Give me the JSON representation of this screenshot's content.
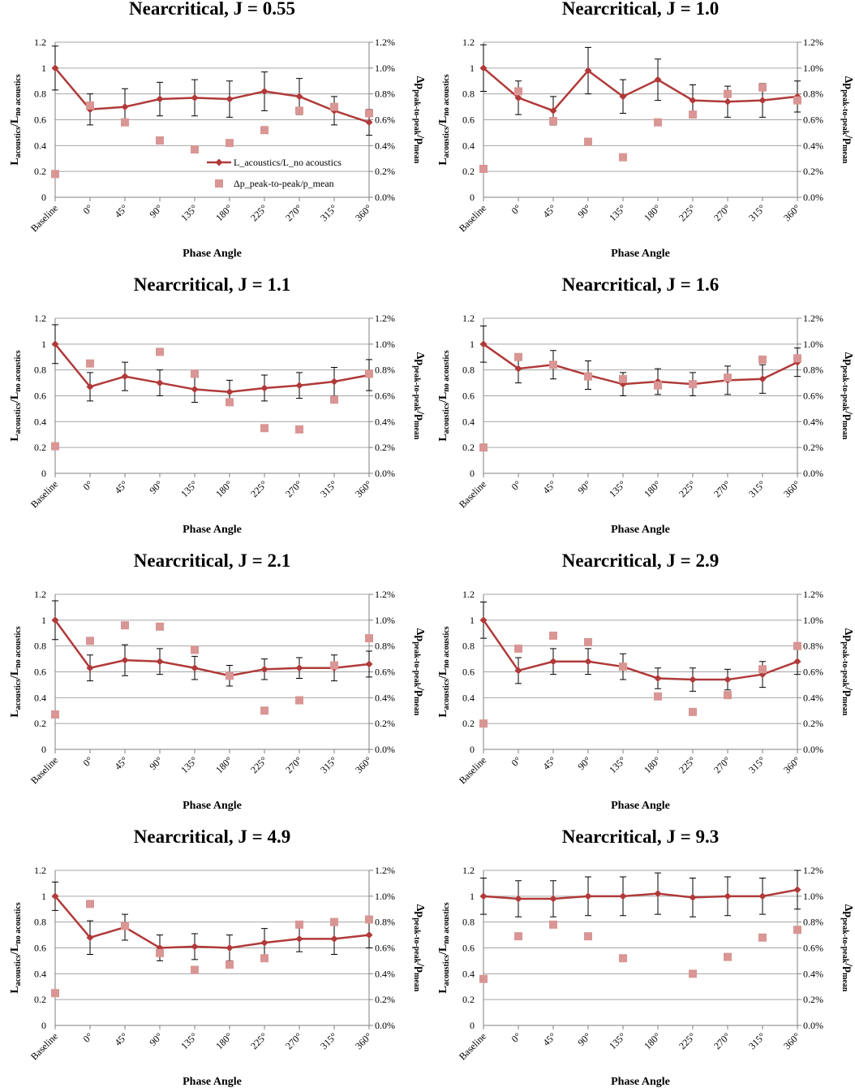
{
  "chart_data": [
    {
      "type": "line",
      "title": "Nearcritical, J = 0.55",
      "x_label": "Phase Angle",
      "y_label": [
        "L",
        "acoustics",
        "/L",
        "no acoustics"
      ],
      "y2_label": [
        "Δp",
        "peak-to-peak",
        "/p",
        "mean"
      ],
      "categories": [
        "Baseline",
        "0°",
        "45°",
        "90°",
        "135°",
        "180°",
        "225°",
        "270°",
        "315°",
        "360°"
      ],
      "ylim": [
        0,
        1.2
      ],
      "yticks": [
        0,
        0.2,
        0.4,
        0.6,
        0.8,
        1,
        1.2
      ],
      "y2lim": [
        0,
        1.2
      ],
      "y2ticks": [
        {
          "value": 0,
          "label": "0.0%"
        },
        {
          "value": 0.2,
          "label": "0.2%"
        },
        {
          "value": 0.4,
          "label": "0.4%"
        },
        {
          "value": 0.6,
          "label": "0.6%"
        },
        {
          "value": 0.8,
          "label": "0.8%"
        },
        {
          "value": 1.0,
          "label": "1.0%"
        },
        {
          "value": 1.2,
          "label": "1.2%"
        }
      ],
      "grid": true,
      "legend": "lower right",
      "series": [
        {
          "name": "L_acoustics/L_no acoustics",
          "color": "#b03a3a",
          "values": [
            1.0,
            0.68,
            0.7,
            0.76,
            0.77,
            0.76,
            0.82,
            0.78,
            0.67,
            0.58
          ],
          "errors": [
            0.17,
            0.12,
            0.14,
            0.13,
            0.14,
            0.14,
            0.15,
            0.14,
            0.11,
            0.1
          ]
        },
        {
          "name": "Δp_peak-to-peak/p_mean",
          "color": "#d99694",
          "axis": "y2",
          "values": [
            0.18,
            0.71,
            0.58,
            0.44,
            0.37,
            0.42,
            0.52,
            0.67,
            0.7,
            0.65
          ]
        }
      ]
    },
    {
      "type": "line",
      "title": "Nearcritical, J = 1.0",
      "x_label": "Phase Angle",
      "y_label": [
        "L",
        "acoustics",
        "/L",
        "no acoustics"
      ],
      "y2_label": [
        "Δp",
        "peak-to-peak",
        "/p",
        "mean"
      ],
      "categories": [
        "Baseline",
        "0°",
        "45°",
        "90°",
        "135°",
        "180°",
        "225°",
        "270°",
        "315°",
        "360°"
      ],
      "ylim": [
        0,
        1.2
      ],
      "yticks": [
        0,
        0.2,
        0.4,
        0.6,
        0.8,
        1,
        1.2
      ],
      "y2lim": [
        0,
        1.2
      ],
      "y2ticks": [
        {
          "value": 0,
          "label": "0.0%"
        },
        {
          "value": 0.2,
          "label": "0.2%"
        },
        {
          "value": 0.4,
          "label": "0.4%"
        },
        {
          "value": 0.6,
          "label": "0.6%"
        },
        {
          "value": 0.8,
          "label": "0.8%"
        },
        {
          "value": 1.0,
          "label": "1.0%"
        },
        {
          "value": 1.2,
          "label": "1.2%"
        }
      ],
      "grid": true,
      "series": [
        {
          "color": "#b03a3a",
          "values": [
            1.0,
            0.77,
            0.67,
            0.98,
            0.78,
            0.91,
            0.75,
            0.74,
            0.75,
            0.78
          ],
          "errors": [
            0.18,
            0.13,
            0.11,
            0.18,
            0.13,
            0.16,
            0.12,
            0.12,
            0.13,
            0.12
          ]
        },
        {
          "color": "#d99694",
          "axis": "y2",
          "values": [
            0.22,
            0.82,
            0.59,
            0.43,
            0.31,
            0.58,
            0.64,
            0.8,
            0.85,
            0.75
          ]
        }
      ]
    },
    {
      "type": "line",
      "title": "Nearcritical, J = 1.1",
      "x_label": "Phase Angle",
      "y_label": [
        "L",
        "acoustics",
        "/L",
        "no acoustics"
      ],
      "y2_label": [
        "Δp",
        "peak-to-peak",
        "/p",
        "mean"
      ],
      "categories": [
        "Baseline",
        "0°",
        "45°",
        "90°",
        "135°",
        "180°",
        "225°",
        "270°",
        "315°",
        "360°"
      ],
      "ylim": [
        0,
        1.2
      ],
      "yticks": [
        0,
        0.2,
        0.4,
        0.6,
        0.8,
        1,
        1.2
      ],
      "y2lim": [
        0,
        1.2
      ],
      "y2ticks": [
        {
          "value": 0,
          "label": "0.0%"
        },
        {
          "value": 0.2,
          "label": "0.2%"
        },
        {
          "value": 0.4,
          "label": "0.4%"
        },
        {
          "value": 0.6,
          "label": "0.6%"
        },
        {
          "value": 0.8,
          "label": "0.8%"
        },
        {
          "value": 1.0,
          "label": "1.0%"
        },
        {
          "value": 1.2,
          "label": "1.2%"
        }
      ],
      "grid": true,
      "series": [
        {
          "color": "#b03a3a",
          "values": [
            1.0,
            0.67,
            0.75,
            0.7,
            0.65,
            0.63,
            0.66,
            0.68,
            0.71,
            0.76
          ],
          "errors": [
            0.15,
            0.11,
            0.11,
            0.1,
            0.1,
            0.09,
            0.1,
            0.1,
            0.11,
            0.12
          ]
        },
        {
          "color": "#d99694",
          "axis": "y2",
          "values": [
            0.21,
            0.85,
            null,
            0.94,
            0.77,
            0.55,
            0.35,
            0.34,
            0.57,
            0.77
          ]
        }
      ]
    },
    {
      "type": "line",
      "title": "Nearcritical, J = 1.6",
      "x_label": "Phase Angle",
      "y_label": [
        "L",
        "acoustics",
        "/L",
        "no acoustics"
      ],
      "y2_label": [
        "Δp",
        "peak-to-peak",
        "/p",
        "mean"
      ],
      "categories": [
        "Baseline",
        "0°",
        "45°",
        "90°",
        "135°",
        "180°",
        "225°",
        "270°",
        "315°",
        "360°"
      ],
      "ylim": [
        0,
        1.2
      ],
      "yticks": [
        0,
        0.2,
        0.4,
        0.6,
        0.8,
        1,
        1.2
      ],
      "y2lim": [
        0,
        1.2
      ],
      "y2ticks": [
        {
          "value": 0,
          "label": "0.0%"
        },
        {
          "value": 0.2,
          "label": "0.2%"
        },
        {
          "value": 0.4,
          "label": "0.4%"
        },
        {
          "value": 0.6,
          "label": "0.6%"
        },
        {
          "value": 0.8,
          "label": "0.8%"
        },
        {
          "value": 1.0,
          "label": "1.0%"
        },
        {
          "value": 1.2,
          "label": "1.2%"
        }
      ],
      "grid": true,
      "series": [
        {
          "color": "#b03a3a",
          "values": [
            1.0,
            0.81,
            0.84,
            0.76,
            0.69,
            0.71,
            0.69,
            0.72,
            0.73,
            0.86
          ],
          "errors": [
            0.14,
            0.11,
            0.11,
            0.11,
            0.09,
            0.1,
            0.09,
            0.11,
            0.11,
            0.11
          ]
        },
        {
          "color": "#d99694",
          "axis": "y2",
          "values": [
            0.2,
            0.9,
            0.84,
            0.75,
            0.73,
            0.68,
            0.69,
            0.74,
            0.88,
            0.89
          ]
        }
      ]
    },
    {
      "type": "line",
      "title": "Nearcritical, J = 2.1",
      "x_label": "Phase Angle",
      "y_label": [
        "L",
        "acoustics",
        "/L",
        "no acoustics"
      ],
      "y2_label": [
        "Δp",
        "peak-to-peak",
        "/p",
        "mean"
      ],
      "categories": [
        "Baseline",
        "0°",
        "45°",
        "90°",
        "135°",
        "180°",
        "225°",
        "270°",
        "315°",
        "360°"
      ],
      "ylim": [
        0,
        1.2
      ],
      "yticks": [
        0,
        0.2,
        0.4,
        0.6,
        0.8,
        1,
        1.2
      ],
      "y2lim": [
        0,
        1.2
      ],
      "y2ticks": [
        {
          "value": 0,
          "label": "0.0%"
        },
        {
          "value": 0.2,
          "label": "0.2%"
        },
        {
          "value": 0.4,
          "label": "0.4%"
        },
        {
          "value": 0.6,
          "label": "0.6%"
        },
        {
          "value": 0.8,
          "label": "0.8%"
        },
        {
          "value": 1.0,
          "label": "1.0%"
        },
        {
          "value": 1.2,
          "label": "1.2%"
        }
      ],
      "grid": true,
      "series": [
        {
          "color": "#b03a3a",
          "values": [
            1.0,
            0.63,
            0.69,
            0.68,
            0.63,
            0.57,
            0.62,
            0.63,
            0.63,
            0.66
          ],
          "errors": [
            0.15,
            0.1,
            0.12,
            0.1,
            0.09,
            0.08,
            0.08,
            0.08,
            0.1,
            0.1
          ]
        },
        {
          "color": "#d99694",
          "axis": "y2",
          "values": [
            0.27,
            0.84,
            0.96,
            0.95,
            0.77,
            0.57,
            0.3,
            0.38,
            0.65,
            0.86
          ]
        }
      ]
    },
    {
      "type": "line",
      "title": "Nearcritical, J = 2.9",
      "x_label": "Phase Angle",
      "y_label": [
        "L",
        "acoustics",
        "/L",
        "no acoustics"
      ],
      "y2_label": [
        "Δp",
        "peak-to-peak",
        "/p",
        "mean"
      ],
      "categories": [
        "Baseline",
        "0°",
        "45°",
        "90°",
        "135°",
        "180°",
        "225°",
        "270°",
        "315°",
        "360°"
      ],
      "ylim": [
        0,
        1.2
      ],
      "yticks": [
        0,
        0.2,
        0.4,
        0.6,
        0.8,
        1,
        1.2
      ],
      "y2lim": [
        0,
        1.2
      ],
      "y2ticks": [
        {
          "value": 0,
          "label": "0.0%"
        },
        {
          "value": 0.2,
          "label": "0.2%"
        },
        {
          "value": 0.4,
          "label": "0.4%"
        },
        {
          "value": 0.6,
          "label": "0.6%"
        },
        {
          "value": 0.8,
          "label": "0.8%"
        },
        {
          "value": 1.0,
          "label": "1.0%"
        },
        {
          "value": 1.2,
          "label": "1.2%"
        }
      ],
      "grid": true,
      "series": [
        {
          "color": "#b03a3a",
          "values": [
            1.0,
            0.61,
            0.68,
            0.68,
            0.64,
            0.55,
            0.54,
            0.54,
            0.58,
            0.68
          ],
          "errors": [
            0.14,
            0.1,
            0.1,
            0.1,
            0.1,
            0.08,
            0.09,
            0.08,
            0.1,
            0.1
          ]
        },
        {
          "color": "#d99694",
          "axis": "y2",
          "values": [
            0.2,
            0.78,
            0.88,
            0.83,
            0.64,
            0.41,
            0.29,
            0.42,
            0.62,
            0.8
          ]
        }
      ]
    },
    {
      "type": "line",
      "title": "Nearcritical, J = 4.9",
      "x_label": "Phase Angle",
      "y_label": [
        "L",
        "acoustics",
        "/L",
        "no acoustics"
      ],
      "y2_label": [
        "Δp",
        "peak-to-peak",
        "/p",
        "mean"
      ],
      "categories": [
        "Baseline",
        "0°",
        "45°",
        "90°",
        "135°",
        "180°",
        "225°",
        "270°",
        "315°",
        "360°"
      ],
      "ylim": [
        0,
        1.2
      ],
      "yticks": [
        0,
        0.2,
        0.4,
        0.6,
        0.8,
        1,
        1.2
      ],
      "y2lim": [
        0,
        1.2
      ],
      "y2ticks": [
        {
          "value": 0,
          "label": "0.0%"
        },
        {
          "value": 0.2,
          "label": "0.2%"
        },
        {
          "value": 0.4,
          "label": "0.4%"
        },
        {
          "value": 0.6,
          "label": "0.6%"
        },
        {
          "value": 0.8,
          "label": "0.8%"
        },
        {
          "value": 1.0,
          "label": "1.0%"
        },
        {
          "value": 1.2,
          "label": "1.2%"
        }
      ],
      "grid": true,
      "series": [
        {
          "color": "#b03a3a",
          "values": [
            1.0,
            0.68,
            0.76,
            0.6,
            0.61,
            0.6,
            0.64,
            0.67,
            0.67,
            0.7
          ],
          "errors": [
            0.11,
            0.13,
            0.1,
            0.1,
            0.1,
            0.1,
            0.11,
            0.1,
            0.12,
            0.1
          ]
        },
        {
          "color": "#d99694",
          "axis": "y2",
          "values": [
            0.25,
            0.94,
            0.77,
            0.56,
            0.43,
            0.47,
            0.52,
            0.78,
            0.8,
            0.82
          ]
        }
      ]
    },
    {
      "type": "line",
      "title": "Nearcritical, J = 9.3",
      "x_label": "Phase Angle",
      "y_label": [
        "L",
        "acoustics",
        "/L",
        "no acoustics"
      ],
      "y2_label": [
        "Δp",
        "peak-to-peak",
        "/p",
        "mean"
      ],
      "categories": [
        "Baseline",
        "0°",
        "45°",
        "90°",
        "135°",
        "180°",
        "225°",
        "270°",
        "315°",
        "360°"
      ],
      "ylim": [
        0,
        1.2
      ],
      "yticks": [
        0,
        0.2,
        0.4,
        0.6,
        0.8,
        1,
        1.2
      ],
      "y2lim": [
        0,
        1.2
      ],
      "y2ticks": [
        {
          "value": 0,
          "label": "0.0%"
        },
        {
          "value": 0.2,
          "label": "0.2%"
        },
        {
          "value": 0.4,
          "label": "0.4%"
        },
        {
          "value": 0.6,
          "label": "0.6%"
        },
        {
          "value": 0.8,
          "label": "0.8%"
        },
        {
          "value": 1.0,
          "label": "1.0%"
        },
        {
          "value": 1.2,
          "label": "1.2%"
        }
      ],
      "grid": true,
      "series": [
        {
          "color": "#b03a3a",
          "values": [
            1.0,
            0.98,
            0.98,
            1.0,
            1.0,
            1.02,
            0.99,
            1.0,
            1.0,
            1.05
          ],
          "errors": [
            0.14,
            0.14,
            0.14,
            0.15,
            0.15,
            0.16,
            0.15,
            0.15,
            0.14,
            0.15
          ]
        },
        {
          "color": "#d99694",
          "axis": "y2",
          "values": [
            0.36,
            0.69,
            0.78,
            0.69,
            0.52,
            null,
            0.4,
            0.53,
            0.68,
            0.74
          ]
        }
      ]
    }
  ]
}
